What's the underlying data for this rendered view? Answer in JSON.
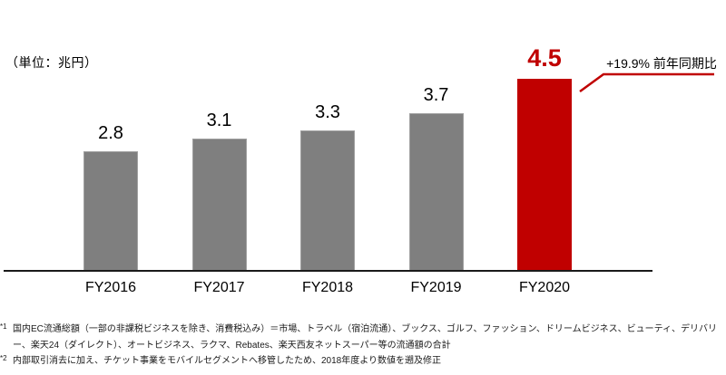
{
  "chart_data": {
    "type": "bar",
    "title": "",
    "unit_label": "（単位：兆円）",
    "categories": [
      "FY2016",
      "FY2017",
      "FY2018",
      "FY2019",
      "FY2020"
    ],
    "values": [
      2.8,
      3.1,
      3.3,
      3.7,
      4.5
    ],
    "value_labels": [
      "2.8",
      "3.1",
      "3.3",
      "3.7",
      "4.5"
    ],
    "highlight_index": 4,
    "annotation": "+19.9% 前年同期比",
    "ylim": [
      0,
      4.7
    ],
    "grid": false,
    "legend": null,
    "colors": {
      "bar": "#7f7f7f",
      "highlight": "#c00000",
      "axis": "#1a1a1a",
      "callout": "#c00000"
    }
  },
  "footnotes": [
    {
      "marker": "*1",
      "text": "国内EC流通総額（一部の非課税ビジネスを除き、消費税込み）＝市場、トラベル（宿泊流通）、ブックス、ゴルフ、ファッション、ドリームビジネス、ビューティ、デリバリー、楽天24（ダイレクト）、オートビジネス、ラクマ、Rebates、楽天西友ネットスーパー等の流通額の合計"
    },
    {
      "marker": "*2",
      "text": "内部取引消去に加え、チケット事業をモバイルセグメントへ移管したため、2018年度より数値を遡及修正"
    }
  ]
}
